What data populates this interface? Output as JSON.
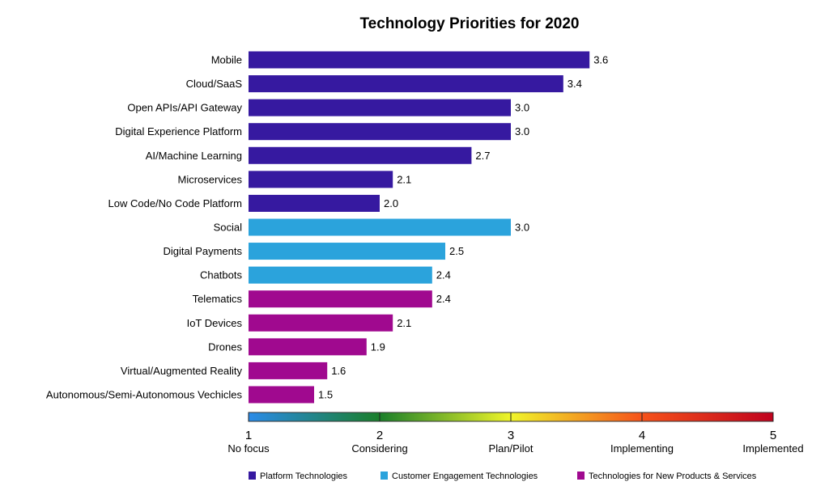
{
  "chart_data": {
    "type": "bar",
    "orientation": "horizontal",
    "title": "Technology Priorities for 2020",
    "xlabel": "",
    "ylabel": "",
    "xlim": [
      1,
      5
    ],
    "grid": false,
    "categories": [
      "Mobile",
      "Cloud/SaaS",
      "Open APIs/API Gateway",
      "Digital Experience Platform",
      "AI/Machine Learning",
      "Microservices",
      "Low Code/No Code Platform",
      "Social",
      "Digital Payments",
      "Chatbots",
      "Telematics",
      "IoT Devices",
      "Drones",
      "Virtual/Augmented Reality",
      "Autonomous/Semi-Autonomous Vechicles"
    ],
    "values": [
      3.6,
      3.4,
      3.0,
      3.0,
      2.7,
      2.1,
      2.0,
      3.0,
      2.5,
      2.4,
      2.4,
      2.1,
      1.9,
      1.6,
      1.5
    ],
    "value_labels": [
      "3.6",
      "3.4",
      "3.0",
      "3.0",
      "2.7",
      "2.1",
      "2.0",
      "3.0",
      "2.5",
      "2.4",
      "2.4",
      "2.1",
      "1.9",
      "1.6",
      "1.5"
    ],
    "groups": [
      0,
      0,
      0,
      0,
      0,
      0,
      0,
      1,
      1,
      1,
      2,
      2,
      2,
      2,
      2
    ],
    "series": [
      {
        "name": "Platform Technologies",
        "color": "#3619a0"
      },
      {
        "name": "Customer Engagement Technologies",
        "color": "#2ba3dc"
      },
      {
        "name": "Technologies for New Products & Services",
        "color": "#a0098f"
      }
    ],
    "scale": {
      "ticks": [
        1,
        2,
        3,
        4,
        5
      ],
      "tick_labels": [
        "No focus",
        "Considering",
        "Plan/Pilot",
        "Implementing",
        "Implemented"
      ],
      "gradient_colors": [
        "#2a8be8",
        "#1a7f2a",
        "#f0f52a",
        "#f6521a",
        "#c0021e"
      ]
    },
    "legend_position": "bottom"
  }
}
